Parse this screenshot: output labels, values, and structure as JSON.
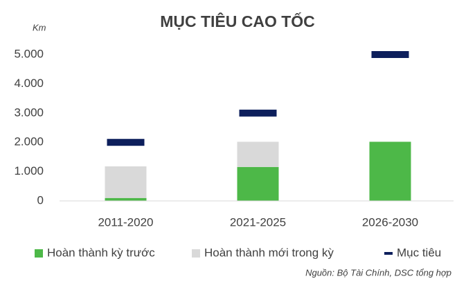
{
  "chart_data": {
    "type": "bar",
    "stacked": true,
    "title": "MỤC TIÊU CAO TỐC",
    "y_axis_label": "Km",
    "source": "Nguồn: Bộ Tài Chính, DSC tổng hợp",
    "categories": [
      "2011-2020",
      "2021-2025",
      "2026-2030"
    ],
    "series": [
      {
        "name": "Hoàn thành kỳ trước",
        "color": "#4db848",
        "values": [
          100,
          1160,
          2020
        ]
      },
      {
        "name": "Hoàn thành mới trong kỳ",
        "color": "#d9d9d9",
        "values": [
          1080,
          860,
          0
        ]
      },
      {
        "name": "Mục tiêu",
        "color": "#0d1f5c",
        "type": "marker",
        "values": [
          2000,
          3000,
          5000
        ]
      }
    ],
    "ylim": [
      0,
      5000
    ],
    "yticks": [
      0,
      {
        "value": 1000,
        "label": "1.000"
      },
      {
        "value": 2000,
        "label": "2.000"
      },
      {
        "value": 3000,
        "label": "3.000"
      },
      {
        "value": 4000,
        "label": "4.000"
      },
      {
        "value": 5000,
        "label": "5.000"
      }
    ],
    "grid": false
  }
}
